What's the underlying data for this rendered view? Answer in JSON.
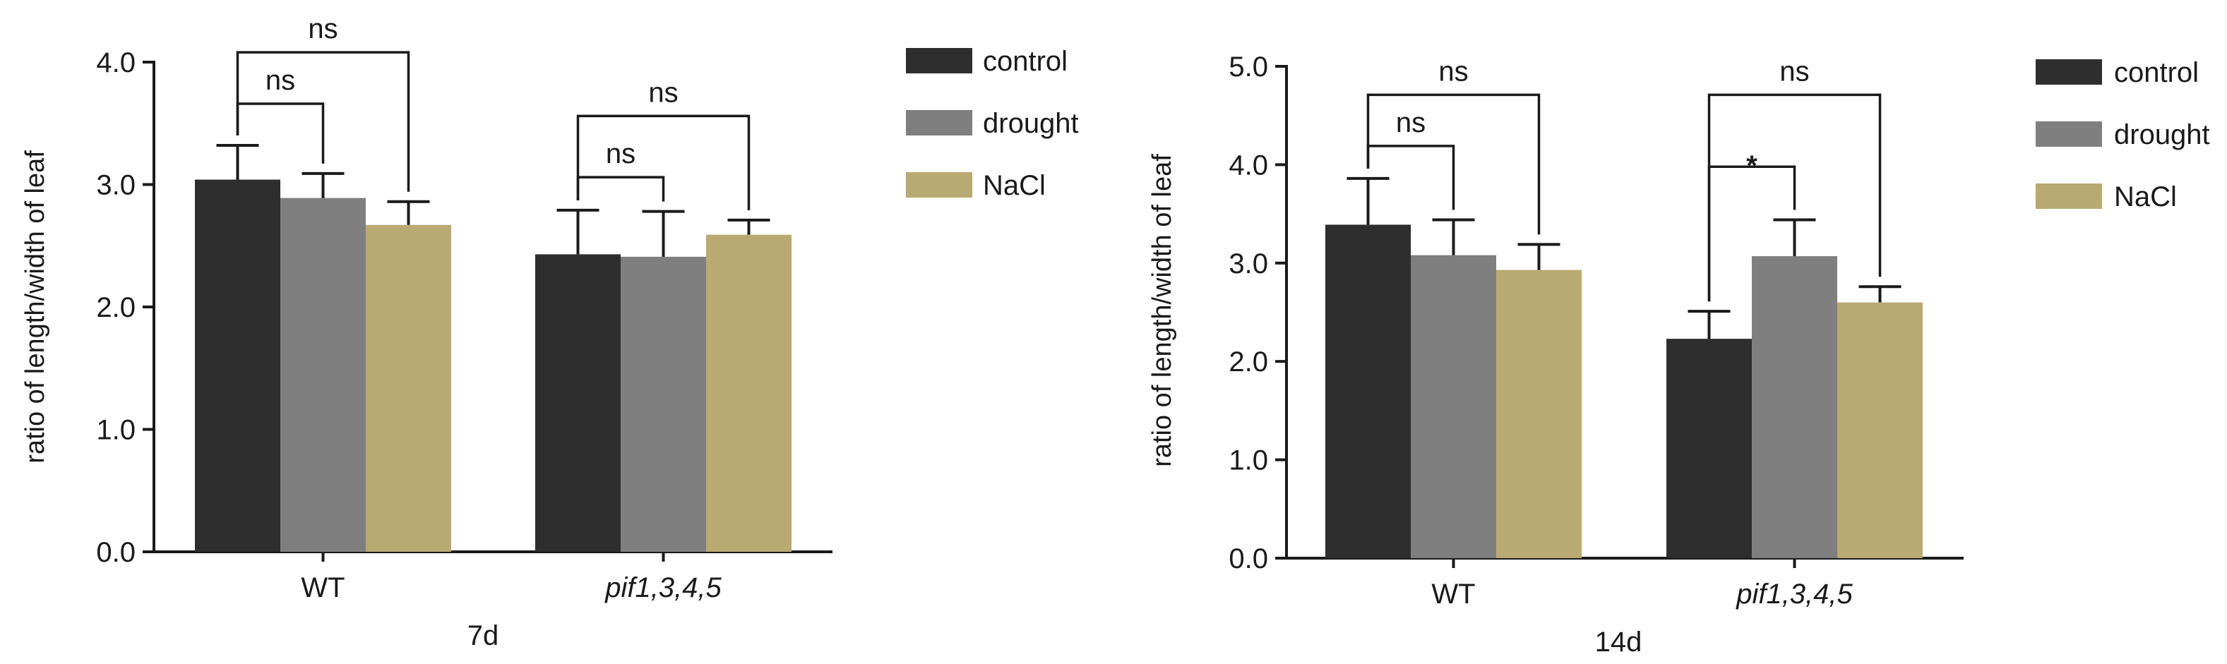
{
  "chart_data": [
    {
      "type": "bar",
      "title": "",
      "xlabel": "7d",
      "ylabel": "ratio of length/width of leaf",
      "ylim": [
        0,
        4.0
      ],
      "yticks": [
        "0.0",
        "1.0",
        "2.0",
        "3.0",
        "4.0"
      ],
      "categories": [
        "WT",
        "pif1,3,4,5"
      ],
      "italic_categories": [
        false,
        true
      ],
      "series": [
        {
          "name": "control",
          "color": "#2e2e2e",
          "values": [
            3.04,
            2.43
          ],
          "errors": [
            0.28,
            0.36
          ]
        },
        {
          "name": "drought",
          "color": "#7f7f7f",
          "values": [
            2.89,
            2.41
          ],
          "errors": [
            0.2,
            0.37
          ]
        },
        {
          "name": "NaCl",
          "color": "#b8aa72",
          "values": [
            2.67,
            2.59
          ],
          "errors": [
            0.19,
            0.12
          ]
        }
      ],
      "legend": {
        "position": "right",
        "entries": [
          "control",
          "drought",
          "NaCl"
        ]
      },
      "annotations": [
        {
          "group": 0,
          "from": 0,
          "to": 1,
          "level": 3.66,
          "label": "ns"
        },
        {
          "group": 0,
          "from": 0,
          "to": 2,
          "level": 4.08,
          "label": "ns"
        },
        {
          "group": 1,
          "from": 0,
          "to": 1,
          "level": 3.06,
          "label": "ns"
        },
        {
          "group": 1,
          "from": 0,
          "to": 2,
          "level": 3.56,
          "label": "ns"
        }
      ]
    },
    {
      "type": "bar",
      "title": "",
      "xlabel": "14d",
      "ylabel": "ratio of length/width of leaf",
      "ylim": [
        0,
        5.0
      ],
      "yticks": [
        "0.0",
        "1.0",
        "2.0",
        "3.0",
        "4.0",
        "5.0"
      ],
      "categories": [
        "WT",
        "pif1,3,4,5"
      ],
      "italic_categories": [
        false,
        true
      ],
      "series": [
        {
          "name": "control",
          "color": "#2e2e2e",
          "values": [
            3.39,
            2.23
          ],
          "errors": [
            0.47,
            0.28
          ]
        },
        {
          "name": "drought",
          "color": "#7f7f7f",
          "values": [
            3.08,
            3.07
          ],
          "errors": [
            0.36,
            0.37
          ]
        },
        {
          "name": "NaCl",
          "color": "#b8aa72",
          "values": [
            2.93,
            2.6
          ],
          "errors": [
            0.26,
            0.16
          ]
        }
      ],
      "legend": {
        "position": "right",
        "entries": [
          "control",
          "drought",
          "NaCl"
        ]
      },
      "annotations": [
        {
          "group": 0,
          "from": 0,
          "to": 1,
          "level": 4.19,
          "label": "ns"
        },
        {
          "group": 0,
          "from": 0,
          "to": 2,
          "level": 4.71,
          "label": "ns"
        },
        {
          "group": 1,
          "from": 0,
          "to": 1,
          "level": 3.98,
          "label": "*"
        },
        {
          "group": 1,
          "from": 0,
          "to": 2,
          "level": 4.71,
          "label": "ns"
        }
      ]
    }
  ]
}
